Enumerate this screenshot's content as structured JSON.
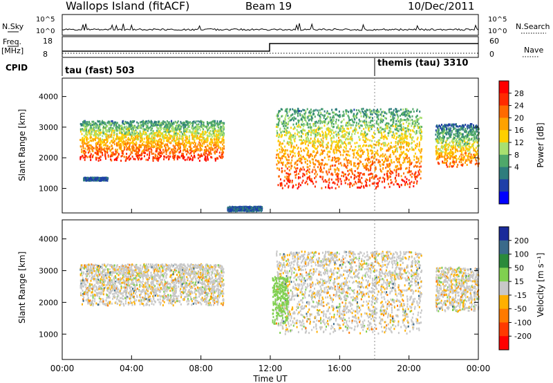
{
  "header": {
    "title": "Wallops Island (fitACF)",
    "beam": "Beam 19",
    "date": "10/Dec/2011"
  },
  "status": {
    "nsky_label": "N.Sky",
    "nsky_ticks": [
      "10^5",
      "10^0"
    ],
    "nsearch_label": "N.Search",
    "nsearch_ticks": [
      "10^5",
      "10^0"
    ],
    "freq_label": "Freq.",
    "freq_unit": "[MHz]",
    "freq_ticks": [
      "18",
      "8"
    ],
    "nave_label": "Nave",
    "nave_ticks": [
      "60",
      "0"
    ],
    "cpid_label": "CPID",
    "cpid_segments": [
      {
        "name": "tau (fast) 503",
        "start": 0
      },
      {
        "name": "themis (tau) 3310",
        "start": 18
      }
    ]
  },
  "power_scale": {
    "label": "Power [dB]",
    "ticks": [
      "28",
      "24",
      "20",
      "16",
      "12",
      "8",
      "4"
    ],
    "colors": [
      "#ff0000",
      "#ff2a00",
      "#ff6a00",
      "#ffa200",
      "#ffd000",
      "#a8e070",
      "#4fa86a",
      "#2e7d7d",
      "#1f3fa8",
      "#0000ff"
    ]
  },
  "velocity_scale": {
    "label": "Velocity [m s⁻¹]",
    "ticks": [
      "200",
      "100",
      "50",
      "15",
      "-15",
      "-50",
      "-100",
      "-200"
    ],
    "colors": [
      "#1a2a9a",
      "#3a6a8a",
      "#2a8a3a",
      "#80d050",
      "#c8c8c8",
      "#ffb000",
      "#ff7a00",
      "#ff3a00",
      "#ff0000"
    ]
  },
  "chart_data": [
    {
      "type": "heatmap",
      "title": "Power",
      "xlabel": "Time UT",
      "ylabel": "Slant Range [km]",
      "xlim": [
        0,
        24
      ],
      "ylim": [
        200,
        4600
      ],
      "x_ticks": [
        "00:00",
        "04:00",
        "08:00",
        "12:00",
        "16:00",
        "20:00",
        "00:00"
      ],
      "y_ticks": [
        1000,
        2000,
        3000,
        4000
      ],
      "bands": [
        {
          "t": [
            1.0,
            9.3
          ],
          "range": [
            1900,
            3200
          ],
          "level": "high"
        },
        {
          "t": [
            12.3,
            20.7
          ],
          "range": [
            1000,
            3600
          ],
          "level": "high"
        },
        {
          "t": [
            21.5,
            24.0
          ],
          "range": [
            1700,
            3100
          ],
          "level": "medium"
        },
        {
          "t": [
            1.2,
            2.6
          ],
          "range": [
            1250,
            1350
          ],
          "level": "low"
        },
        {
          "t": [
            9.5,
            11.5
          ],
          "range": [
            250,
            400
          ],
          "level": "low"
        }
      ]
    },
    {
      "type": "heatmap",
      "title": "Velocity",
      "xlabel": "Time UT",
      "ylabel": "Slant Range [km]",
      "xlim": [
        0,
        24
      ],
      "ylim": [
        200,
        4600
      ],
      "x_ticks": [
        "00:00",
        "04:00",
        "08:00",
        "12:00",
        "16:00",
        "20:00",
        "00:00"
      ],
      "y_ticks": [
        1000,
        2000,
        3000,
        4000
      ],
      "bands": [
        {
          "t": [
            1.0,
            9.3
          ],
          "range": [
            1900,
            3200
          ],
          "level": "near-zero"
        },
        {
          "t": [
            12.3,
            20.7
          ],
          "range": [
            1000,
            3600
          ],
          "level": "near-zero"
        },
        {
          "t": [
            12.1,
            13.0
          ],
          "range": [
            1300,
            2800
          ],
          "level": "positive"
        },
        {
          "t": [
            21.5,
            24.0
          ],
          "range": [
            1700,
            3100
          ],
          "level": "near-zero"
        }
      ]
    }
  ]
}
